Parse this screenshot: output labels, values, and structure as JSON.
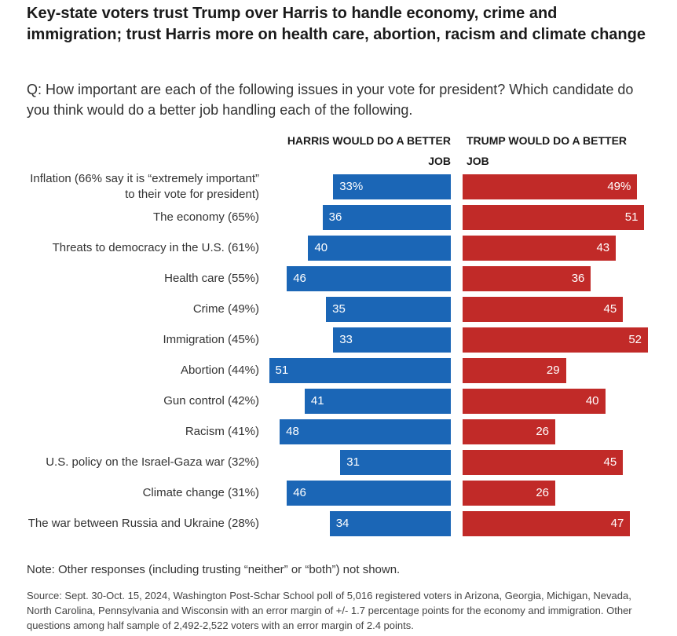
{
  "chart_data": {
    "type": "diverging-bar",
    "title": "Key-state voters trust Trump over Harris to handle economy, crime and immigration; trust Harris more on health care, abortion, racism and climate change",
    "subtitle": "Q: How important are each of the following issues in your vote for president? Which candidate do you think would do a better job handling each of the following.",
    "categories": [
      "Inflation (66% say it is “extremely important” to their vote for president)",
      "The economy (65%)",
      "Threats to democracy in the U.S. (61%)",
      "Health care (55%)",
      "Crime (49%)",
      "Immigration (45%)",
      "Abortion (44%)",
      "Gun control (42%)",
      "Racism (41%)",
      "U.S. policy on the Israel-Gaza war (32%)",
      "Climate change (31%)",
      "The war between Russia and Ukraine (28%)"
    ],
    "series": [
      {
        "name": "HARRIS WOULD DO A BETTER JOB",
        "color": "#1b66b6",
        "values": [
          33,
          36,
          40,
          46,
          35,
          33,
          51,
          41,
          48,
          31,
          46,
          34
        ],
        "value_labels": [
          "33%",
          "36",
          "40",
          "46",
          "35",
          "33",
          "51",
          "41",
          "48",
          "31",
          "46",
          "34"
        ]
      },
      {
        "name": "TRUMP WOULD DO A BETTER JOB",
        "color": "#c12a28",
        "values": [
          49,
          51,
          43,
          36,
          45,
          52,
          29,
          40,
          26,
          45,
          26,
          47
        ],
        "value_labels": [
          "49%",
          "51",
          "43",
          "36",
          "45",
          "52",
          "29",
          "40",
          "26",
          "45",
          "26",
          "47"
        ]
      }
    ],
    "note": "Note: Other responses (including trusting “neither” or “both”) not shown.",
    "source": "Source: Sept. 30-Oct. 15, 2024, Washington Post-Schar School poll of 5,016 registered voters in Arizona, Georgia, Michigan, Nevada, North Carolina, Pennsylvania and Wisconsin with an error margin of +/- 1.7 percentage points for the economy and immigration. Other questions among half sample of 2,492-2,522 voters with an error margin of 2.4 points."
  }
}
